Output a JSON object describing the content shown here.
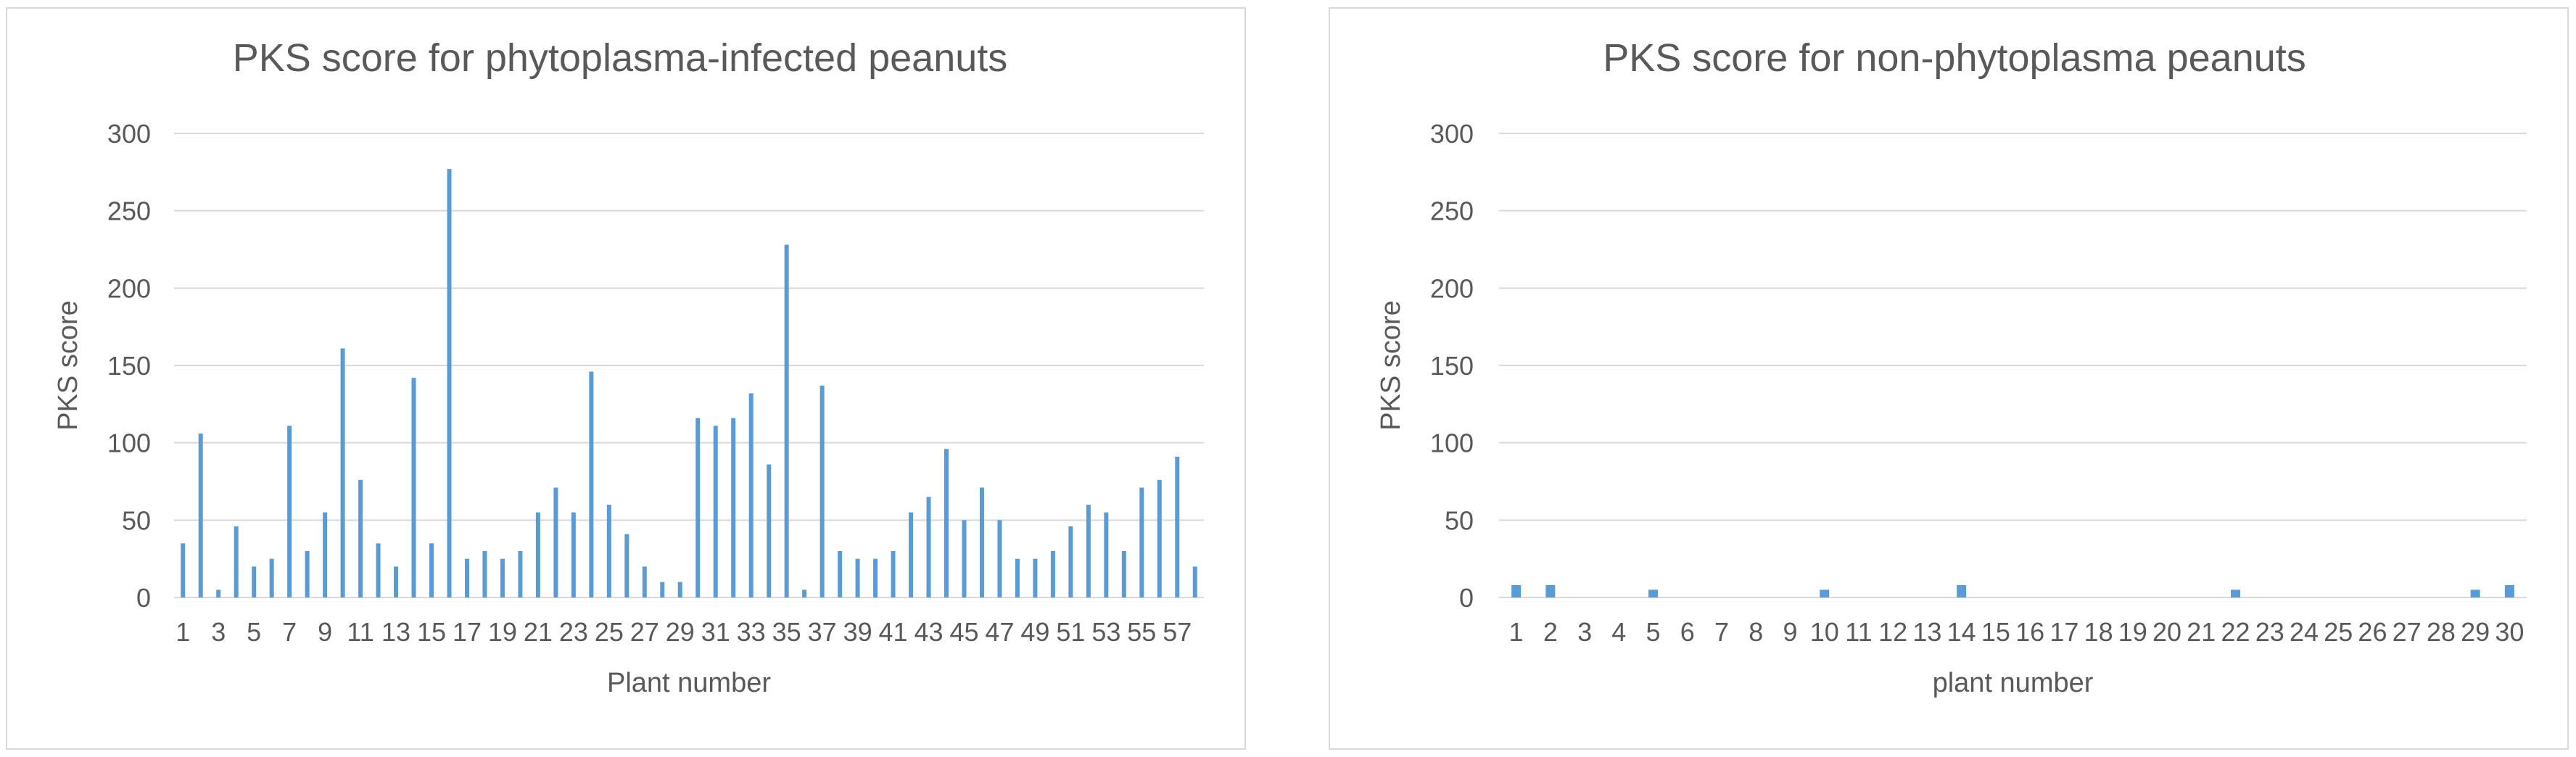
{
  "colors": {
    "bar": "#5b9bd5",
    "grid": "#d9d9d9",
    "text": "#595959"
  },
  "chart_data": [
    {
      "type": "bar",
      "title": "PKS score for phytoplasma-infected peanuts",
      "xlabel": "Plant number",
      "ylabel": "PKS score",
      "ylim": [
        0,
        300
      ],
      "yticks": [
        "0",
        "50",
        "100",
        "150",
        "200",
        "250",
        "300"
      ],
      "grid": true,
      "legend": "none",
      "categories": [
        "1",
        "2",
        "3",
        "4",
        "5",
        "6",
        "7",
        "8",
        "9",
        "10",
        "11",
        "12",
        "13",
        "14",
        "15",
        "16",
        "17",
        "18",
        "19",
        "20",
        "21",
        "22",
        "23",
        "24",
        "25",
        "26",
        "27",
        "28",
        "29",
        "30",
        "31",
        "32",
        "33",
        "34",
        "35",
        "36",
        "37",
        "38",
        "39",
        "40",
        "41",
        "42",
        "43",
        "44",
        "45",
        "46",
        "47",
        "48",
        "49",
        "50",
        "51",
        "52",
        "53",
        "54",
        "55",
        "56",
        "57",
        "58"
      ],
      "xtick_labels": [
        "1",
        "3",
        "5",
        "7",
        "9",
        "11",
        "13",
        "15",
        "17",
        "19",
        "21",
        "23",
        "25",
        "27",
        "29",
        "31",
        "33",
        "35",
        "37",
        "39",
        "41",
        "43",
        "45",
        "47",
        "49",
        "51",
        "53",
        "55",
        "57"
      ],
      "values": [
        35,
        106,
        5,
        46,
        20,
        25,
        111,
        30,
        55,
        161,
        76,
        35,
        20,
        142,
        35,
        277,
        25,
        30,
        25,
        30,
        55,
        71,
        55,
        146,
        60,
        41,
        20,
        10,
        10,
        116,
        111,
        116,
        132,
        86,
        228,
        5,
        137,
        30,
        25,
        25,
        30,
        55,
        65,
        96,
        50,
        71,
        50,
        25,
        25,
        30,
        46,
        60,
        55,
        30,
        71,
        76,
        91,
        20
      ]
    },
    {
      "type": "bar",
      "title": "PKS score for non-phytoplasma peanuts",
      "xlabel": "plant number",
      "ylabel": "PKS score",
      "ylim": [
        0,
        300
      ],
      "yticks": [
        "0",
        "50",
        "100",
        "150",
        "200",
        "250",
        "300"
      ],
      "grid": true,
      "legend": "none",
      "categories": [
        "1",
        "2",
        "3",
        "4",
        "5",
        "6",
        "7",
        "8",
        "9",
        "10",
        "11",
        "12",
        "13",
        "14",
        "15",
        "16",
        "17",
        "18",
        "19",
        "20",
        "21",
        "22",
        "23",
        "24",
        "25",
        "26",
        "27",
        "28",
        "29",
        "30"
      ],
      "xtick_labels": [
        "1",
        "2",
        "3",
        "4",
        "5",
        "6",
        "7",
        "8",
        "9",
        "10",
        "11",
        "12",
        "13",
        "14",
        "15",
        "16",
        "17",
        "18",
        "19",
        "20",
        "21",
        "22",
        "23",
        "24",
        "25",
        "26",
        "27",
        "28",
        "29",
        "30"
      ],
      "values": [
        8,
        8,
        0,
        0,
        5,
        0,
        0,
        0,
        0,
        5,
        0,
        0,
        0,
        8,
        0,
        0,
        0,
        0,
        0,
        0,
        0,
        5,
        0,
        0,
        0,
        0,
        0,
        0,
        5,
        8
      ]
    }
  ]
}
